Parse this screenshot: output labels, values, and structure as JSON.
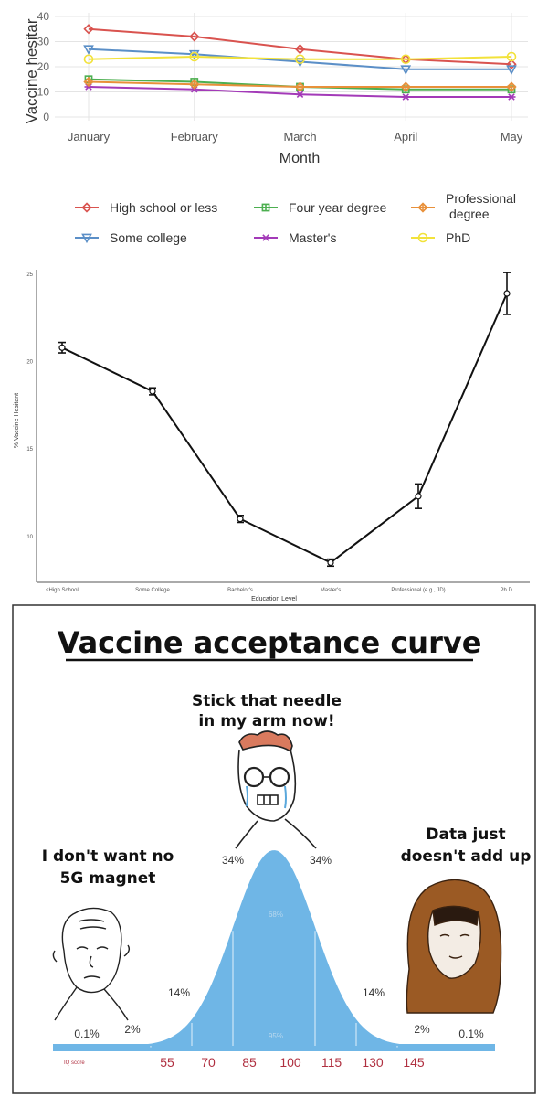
{
  "chart_data": [
    {
      "type": "line",
      "title": "",
      "xlabel": "Month",
      "ylabel": "Vaccine hesitar",
      "categories": [
        "January",
        "February",
        "March",
        "April",
        "May"
      ],
      "ylim": [
        0,
        40
      ],
      "yticks": [
        "0",
        "10",
        "20",
        "30",
        "40"
      ],
      "grid": true,
      "legend_position": "bottom",
      "series": [
        {
          "name": "High school or less",
          "color": "#d9534f",
          "marker": "diamond",
          "values": [
            35,
            32,
            27,
            23,
            21
          ]
        },
        {
          "name": "Some college",
          "color": "#5b8fc7",
          "marker": "triangle-down",
          "values": [
            27,
            25,
            22,
            19,
            19
          ]
        },
        {
          "name": "Four year degree",
          "color": "#4caf50",
          "marker": "square-plus",
          "values": [
            15,
            14,
            12,
            11,
            11
          ]
        },
        {
          "name": "Master's",
          "color": "#a33ab8",
          "marker": "asterisk",
          "values": [
            12,
            11,
            9,
            8,
            8
          ]
        },
        {
          "name": "Professional degree",
          "color": "#e8903a",
          "marker": "diamond-plus",
          "values": [
            14,
            13,
            12,
            12,
            12
          ]
        },
        {
          "name": "PhD",
          "color": "#f2e23a",
          "marker": "circle",
          "values": [
            23,
            24,
            23,
            23,
            24
          ]
        }
      ],
      "legend_labels": {
        "professional_line1": "Professional",
        "professional_line2": "degree"
      }
    },
    {
      "type": "line",
      "title": "",
      "xlabel": "Education Level",
      "ylabel": "% Vaccine Hesitant",
      "categories": [
        "≤High School",
        "Some College",
        "Bachelor's",
        "Master's",
        "Professional (e.g., JD)",
        "Ph.D."
      ],
      "ylim": [
        8,
        25
      ],
      "yticks": [
        "10",
        "15",
        "20",
        "25"
      ],
      "error_bars": true,
      "series": [
        {
          "name": "",
          "values": [
            20.8,
            18.3,
            11.0,
            8.5,
            12.3,
            23.9
          ],
          "error": [
            0.3,
            0.2,
            0.2,
            0.2,
            0.7,
            1.2
          ]
        }
      ]
    },
    {
      "type": "area",
      "title": "Vaccine acceptance curve",
      "x_axis_title": "IQ score",
      "x": [
        55,
        70,
        85,
        100,
        115,
        130,
        145
      ],
      "color": "#6fb6e6",
      "percent_labels": {
        "left_tail": "0.1%",
        "left_small": "2%",
        "left_mid": "14%",
        "left_center": "34%",
        "right_center": "34%",
        "right_mid": "14%",
        "right_small": "2%",
        "right_tail": "0.1%",
        "inner_68": "68%",
        "inner_95": "95%"
      },
      "captions": {
        "center_line1": "Stick that needle",
        "center_line2": "in my arm now!",
        "left_line1": "I don't want no",
        "left_line2": "5G magnet",
        "right_line1": "Data just",
        "right_line2": "doesn't add up"
      }
    }
  ]
}
